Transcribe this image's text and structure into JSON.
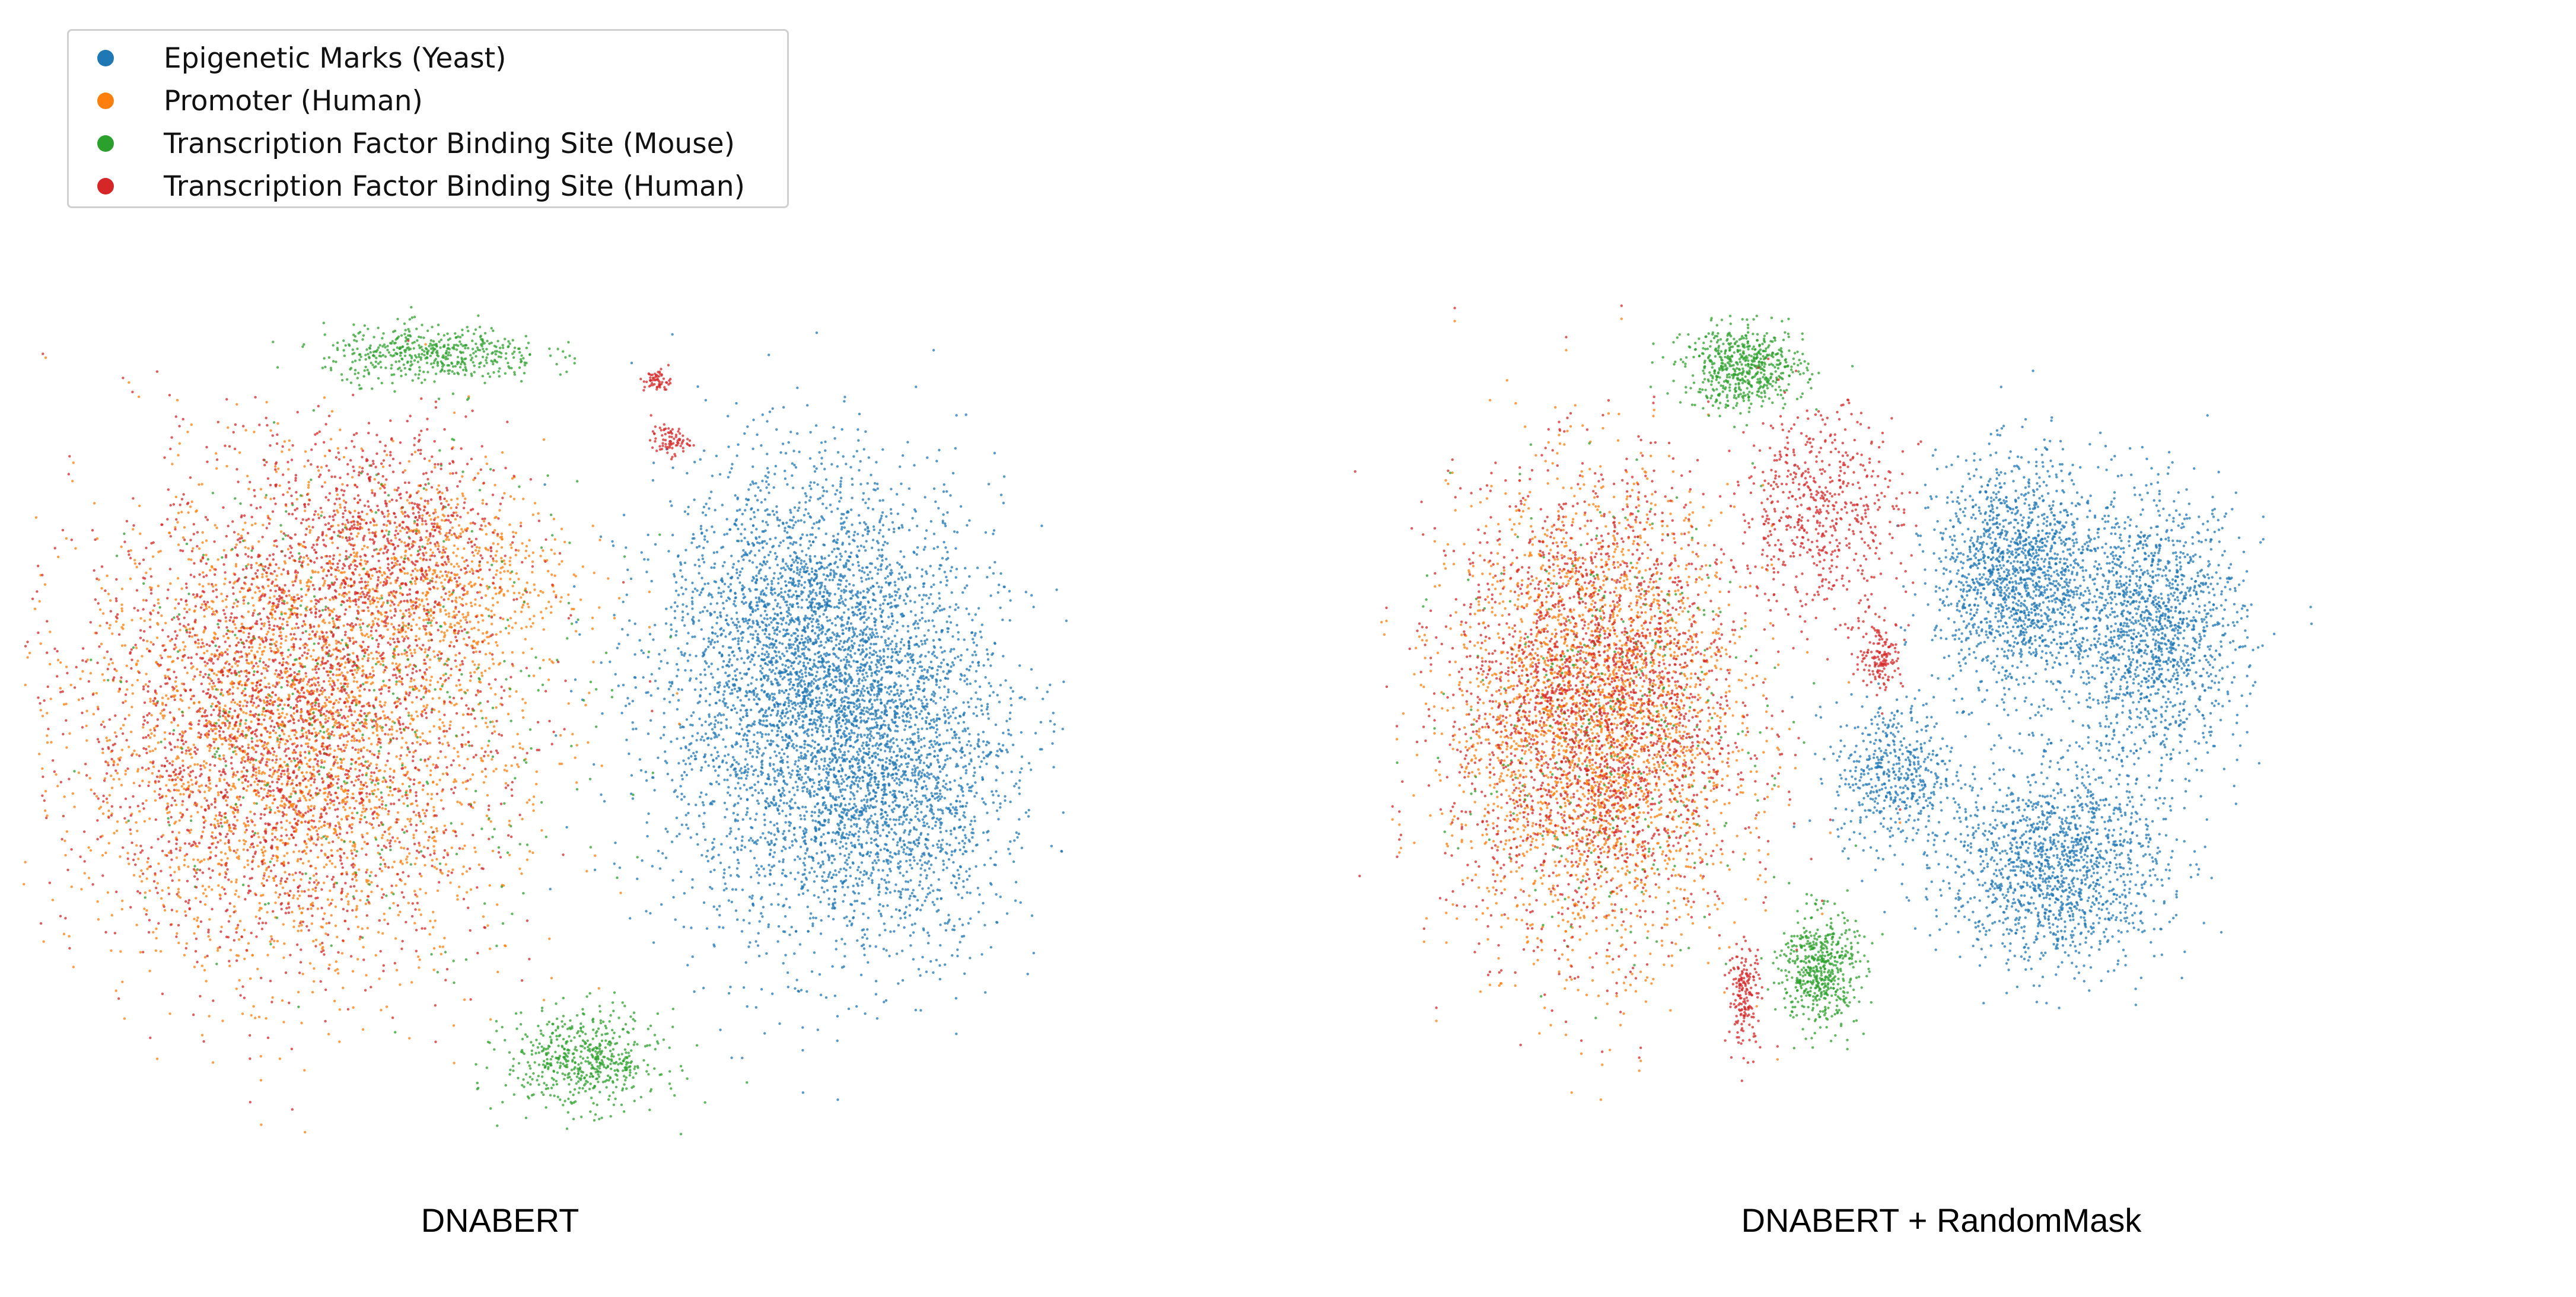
{
  "chart_data": [
    {
      "type": "scatter",
      "title": "DNABERT",
      "xlabel": "",
      "ylabel": "",
      "axes_visible": false,
      "grid": false,
      "legend": "top-left",
      "series": [
        {
          "name": "Epigenetic Marks (Yeast)",
          "color": "#1f77b4",
          "clusters": [
            {
              "center": [
                1.25,
                0.0
              ],
              "spread": [
                0.62,
                0.78
              ],
              "weight": 3800
            },
            {
              "center": [
                1.1,
                0.4
              ],
              "spread": [
                0.45,
                0.55
              ],
              "weight": 1200
            },
            {
              "center": [
                1.55,
                -0.3
              ],
              "spread": [
                0.35,
                0.5
              ],
              "weight": 800
            }
          ]
        },
        {
          "name": "Promoter (Human)",
          "color": "#ff7f0e",
          "clusters": [
            {
              "center": [
                -0.9,
                -0.05
              ],
              "spread": [
                0.78,
                0.82
              ],
              "weight": 3000
            },
            {
              "center": [
                -0.3,
                0.55
              ],
              "spread": [
                0.45,
                0.35
              ],
              "weight": 600
            }
          ]
        },
        {
          "name": "Transcription Factor Binding Site (Mouse)",
          "color": "#2ca02c",
          "clusters": [
            {
              "center": [
                -0.35,
                1.4
              ],
              "spread": [
                0.4,
                0.1
              ],
              "weight": 500
            },
            {
              "center": [
                0.25,
                -1.3
              ],
              "spread": [
                0.28,
                0.17
              ],
              "weight": 560
            },
            {
              "center": [
                -0.6,
                0.1
              ],
              "spread": [
                0.85,
                0.8
              ],
              "weight": 450
            }
          ]
        },
        {
          "name": "Transcription Factor Binding Site (Human)",
          "color": "#d62728",
          "clusters": [
            {
              "center": [
                -0.95,
                0.0
              ],
              "spread": [
                0.75,
                0.8
              ],
              "weight": 2600
            },
            {
              "center": [
                -0.55,
                0.7
              ],
              "spread": [
                0.45,
                0.4
              ],
              "weight": 700
            },
            {
              "center": [
                0.55,
                1.3
              ],
              "spread": [
                0.05,
                0.04
              ],
              "weight": 60
            },
            {
              "center": [
                0.6,
                1.07
              ],
              "spread": [
                0.07,
                0.05
              ],
              "weight": 80
            }
          ]
        }
      ],
      "domain": {
        "x": [
          -2.0,
          2.2
        ],
        "y": [
          -1.6,
          1.6
        ]
      }
    },
    {
      "type": "scatter",
      "title": "DNABERT + RandomMask",
      "xlabel": "",
      "ylabel": "",
      "axes_visible": false,
      "grid": false,
      "series": [
        {
          "name": "Epigenetic Marks (Yeast)",
          "color": "#1f77b4",
          "clusters": [
            {
              "center": [
                0.75,
                0.55
              ],
              "spread": [
                0.3,
                0.4
              ],
              "weight": 1600
            },
            {
              "center": [
                1.3,
                0.35
              ],
              "spread": [
                0.32,
                0.45
              ],
              "weight": 1500
            },
            {
              "center": [
                0.9,
                -0.55
              ],
              "spread": [
                0.4,
                0.35
              ],
              "weight": 1500
            },
            {
              "center": [
                0.25,
                -0.2
              ],
              "spread": [
                0.22,
                0.25
              ],
              "weight": 500
            }
          ]
        },
        {
          "name": "Promoter (Human)",
          "color": "#ff7f0e",
          "clusters": [
            {
              "center": [
                -0.95,
                0.0
              ],
              "spread": [
                0.52,
                0.78
              ],
              "weight": 2800
            }
          ]
        },
        {
          "name": "Transcription Factor Binding Site (Mouse)",
          "color": "#2ca02c",
          "clusters": [
            {
              "center": [
                -0.35,
                1.35
              ],
              "spread": [
                0.22,
                0.14
              ],
              "weight": 600
            },
            {
              "center": [
                -0.05,
                -0.95
              ],
              "spread": [
                0.14,
                0.2
              ],
              "weight": 550
            },
            {
              "center": [
                -0.9,
                0.0
              ],
              "spread": [
                0.55,
                0.75
              ],
              "weight": 350
            }
          ]
        },
        {
          "name": "Transcription Factor Binding Site (Human)",
          "color": "#d62728",
          "clusters": [
            {
              "center": [
                -0.95,
                0.05
              ],
              "spread": [
                0.52,
                0.78
              ],
              "weight": 2500
            },
            {
              "center": [
                -0.05,
                0.8
              ],
              "spread": [
                0.3,
                0.35
              ],
              "weight": 600
            },
            {
              "center": [
                -0.35,
                -1.05
              ],
              "spread": [
                0.06,
                0.18
              ],
              "weight": 180
            },
            {
              "center": [
                0.2,
                0.25
              ],
              "spread": [
                0.08,
                0.12
              ],
              "weight": 150
            }
          ]
        }
      ],
      "domain": {
        "x": [
          -2.0,
          2.2
        ],
        "y": [
          -1.6,
          1.6
        ]
      }
    }
  ]
}
